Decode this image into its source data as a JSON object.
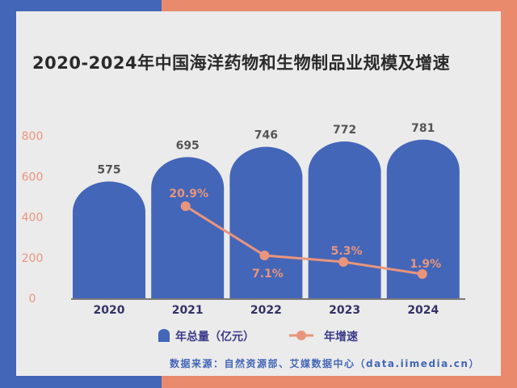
{
  "title": "2020-2024年中国海洋药物和生物制品业规模及增速",
  "source": "数据来源：自然资源部、艾媒数据中心（data.iimedia.cn）",
  "colors": {
    "bar": "#4466b8",
    "line": "#e9957c",
    "axis_tick": "#e9957c",
    "value_label": "#ffffff",
    "bar_label": "#555555"
  },
  "chart_data": {
    "type": "bar",
    "categories": [
      "2020",
      "2021",
      "2022",
      "2023",
      "2024"
    ],
    "ylim": [
      0,
      800
    ],
    "yticks": [
      0,
      200,
      400,
      600,
      800
    ],
    "grid": false,
    "legend_position": "bottom",
    "series": [
      {
        "name": "年总量（亿元）",
        "type": "bar",
        "values": [
          575,
          695,
          746,
          772,
          781
        ],
        "labels": [
          "575",
          "695",
          "746",
          "772",
          "781"
        ]
      },
      {
        "name": "年增速",
        "type": "line",
        "values": [
          null,
          20.9,
          7.1,
          5.3,
          1.9
        ],
        "labels": [
          "",
          "20.9%",
          "7.1%",
          "5.3%",
          "1.9%"
        ]
      }
    ]
  }
}
